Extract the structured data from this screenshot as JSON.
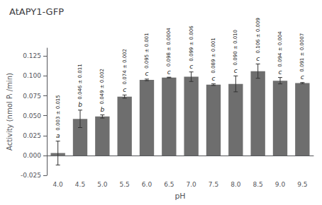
{
  "chart_data": {
    "type": "bar",
    "title": "AtAPY1-GFP",
    "xlabel": "pH",
    "ylabel": "Activity (nmol Pᵢ /min)",
    "categories": [
      "4.0",
      "4.5",
      "5.0",
      "5.5",
      "6.0",
      "6.5",
      "7.0",
      "7.5",
      "8.0",
      "8.5",
      "9.0",
      "9.5"
    ],
    "values": [
      0.003,
      0.046,
      0.049,
      0.074,
      0.095,
      0.098,
      0.099,
      0.089,
      0.09,
      0.106,
      0.094,
      0.091
    ],
    "errors": [
      0.015,
      0.011,
      0.002,
      0.002,
      0.001,
      0.0004,
      0.006,
      0.001,
      0.01,
      0.009,
      0.004,
      0.0007
    ],
    "letters": [
      "a",
      "b",
      "b",
      "c",
      "c",
      "c",
      "c",
      "c",
      "c",
      "c",
      "c",
      "c"
    ],
    "annotations": [
      "0.003 ± 0.015",
      "0.046 ± 0.011",
      "0.049 ± 0.002",
      "0.074 ± 0.002",
      "0.095 ± 0.001",
      "0.098 ± 0.0004",
      "0.099 ± 0.006",
      "0.089 ± 0.001",
      "0.090 ± 0.010",
      "0.106 ± 0.009",
      "0.094 ± 0.004",
      "0.091 ± 0.0007"
    ],
    "color": "#6e6e6e",
    "ylim": [
      -0.025,
      0.135
    ],
    "yticks": [
      -0.025,
      {
        "value": 0.0,
        "label": "0.000"
      },
      0.025,
      {
        "value": 0.05,
        "label": "0.050"
      },
      0.075,
      {
        "value": 0.1,
        "label": "0.100"
      },
      0.125
    ],
    "grid": false,
    "data_labels": false
  }
}
